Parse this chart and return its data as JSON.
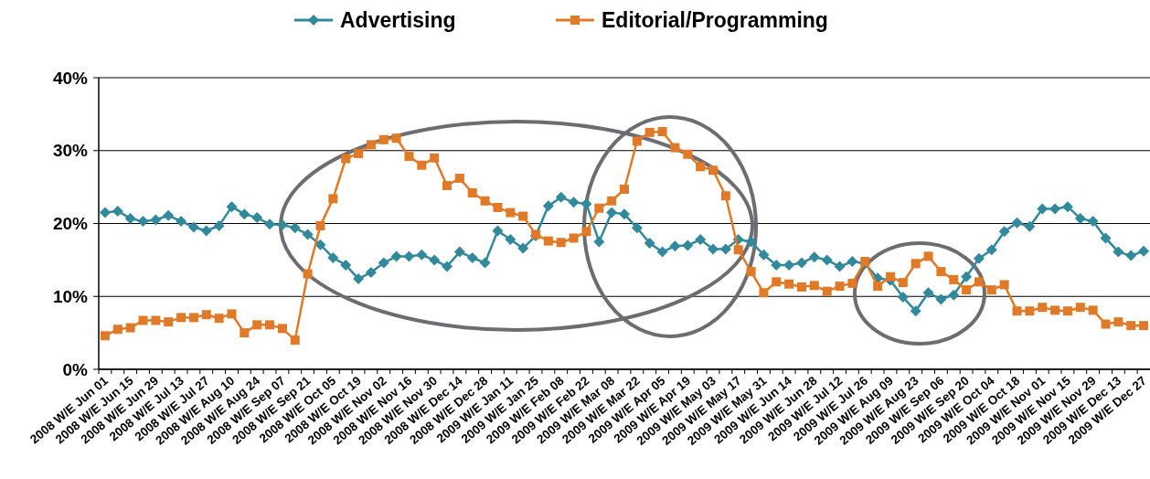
{
  "chart_data": {
    "type": "line",
    "categories": [
      "2008 W/E Jun 01",
      null,
      "2008 W/E Jun 15",
      null,
      "2008 W/E Jun 29",
      null,
      "2008 W/E Jul 13",
      null,
      "2008 W/E Jul 27",
      null,
      "2008 W/E Aug 10",
      null,
      "2008 W/E Aug 24",
      null,
      "2008 W/E Sep 07",
      null,
      "2008 W/E Sep 21",
      null,
      "2008 W/E Oct 05",
      null,
      "2008 W/E Oct 19",
      null,
      "2008 W/E Nov 02",
      null,
      "2008 W/E Nov 16",
      null,
      "2008 W/E Nov 30",
      null,
      "2008 W/E Dec 14",
      null,
      "2008 W/E Dec 28",
      null,
      "2009 W/E Jan 11",
      null,
      "2009 W/E Jan 25",
      null,
      "2009 W/E Feb 08",
      null,
      "2009 W/E Feb 22",
      null,
      "2009 W/E Mar 08",
      null,
      "2009 W/E Mar 22",
      null,
      "2009 W/E Apr 05",
      null,
      "2009 W/E Apr 19",
      null,
      "2009 W/E May 03",
      null,
      "2009 W/E May 17",
      null,
      "2009 W/E May 31",
      null,
      "2009 W/E Jun 14",
      null,
      "2009 W/E Jun 28",
      null,
      "2009 W/E Jul 12",
      null,
      "2009 W/E Jul 26",
      null,
      "2009 W/E Aug 09",
      null,
      "2009 W/E Aug 23",
      null,
      "2009 W/E Sep 06",
      null,
      "2009 W/E Sep 20",
      null,
      "2009 W/E Oct 04",
      null,
      "2009 W/E Oct 18",
      null,
      "2009 W/E Nov 01",
      null,
      "2009 W/E Nov 15",
      null,
      "2009 W/E Nov 29",
      null,
      "2009 W/E Dec 13",
      null,
      "2009 W/E Dec 27"
    ],
    "series": [
      {
        "name": "Advertising",
        "color": "#31899b",
        "marker": "diamond",
        "values": [
          21.5,
          21.7,
          20.7,
          20.3,
          20.5,
          21.1,
          20.3,
          19.5,
          19.0,
          19.7,
          22.3,
          21.3,
          20.8,
          19.9,
          19.8,
          19.4,
          18.5,
          17.1,
          15.3,
          14.3,
          12.4,
          13.3,
          14.6,
          15.5,
          15.5,
          15.7,
          15.0,
          14.1,
          16.1,
          15.3,
          14.6,
          19.0,
          17.8,
          16.6,
          18.3,
          22.4,
          23.6,
          22.9,
          22.7,
          17.5,
          21.5,
          21.3,
          19.4,
          17.3,
          16.1,
          16.9,
          17.0,
          17.8,
          16.5,
          16.5,
          17.8,
          17.5,
          15.7,
          14.3,
          14.3,
          14.6,
          15.4,
          15.0,
          14.1,
          14.8,
          14.5,
          12.5,
          12.2,
          9.9,
          8.0,
          10.5,
          9.6,
          10.2,
          12.7,
          15.2,
          16.4,
          18.9,
          20.1,
          19.6,
          22.0,
          22.0,
          22.3,
          20.7,
          20.3,
          18.0,
          16.1,
          15.6,
          16.2
        ]
      },
      {
        "name": "Editorial/Programming",
        "color": "#e07a28",
        "marker": "square",
        "values": [
          4.6,
          5.5,
          5.7,
          6.7,
          6.7,
          6.5,
          7.1,
          7.1,
          7.5,
          7.0,
          7.6,
          5.0,
          6.1,
          6.1,
          5.6,
          4.0,
          13.1,
          19.7,
          23.4,
          28.9,
          29.6,
          30.8,
          31.5,
          31.7,
          29.2,
          28.0,
          29.0,
          25.2,
          26.2,
          24.2,
          23.1,
          22.2,
          21.5,
          21.0,
          18.5,
          17.6,
          17.4,
          18.0,
          18.9,
          22.1,
          23.1,
          24.7,
          31.3,
          32.5,
          32.6,
          30.4,
          29.5,
          27.8,
          27.3,
          23.8,
          16.4,
          13.4,
          10.5,
          12.0,
          11.7,
          11.3,
          11.5,
          10.7,
          11.4,
          11.8,
          14.8,
          11.4,
          12.7,
          11.9,
          14.5,
          15.5,
          13.4,
          12.3,
          10.9,
          12.0,
          10.9,
          11.6,
          8.0,
          8.0,
          8.5,
          8.1,
          8.0,
          8.5,
          8.1,
          6.2,
          6.5,
          6.0,
          6.0
        ]
      }
    ],
    "ylim": [
      0,
      40
    ],
    "yticks": [
      {
        "value": 0,
        "label": "0%"
      },
      {
        "value": 10,
        "label": "10%"
      },
      {
        "value": 20,
        "label": "20%"
      },
      {
        "value": 30,
        "label": "30%"
      },
      {
        "value": 40,
        "label": "40%"
      }
    ],
    "grid": "y",
    "legend": "top",
    "line_style": "solid"
  }
}
